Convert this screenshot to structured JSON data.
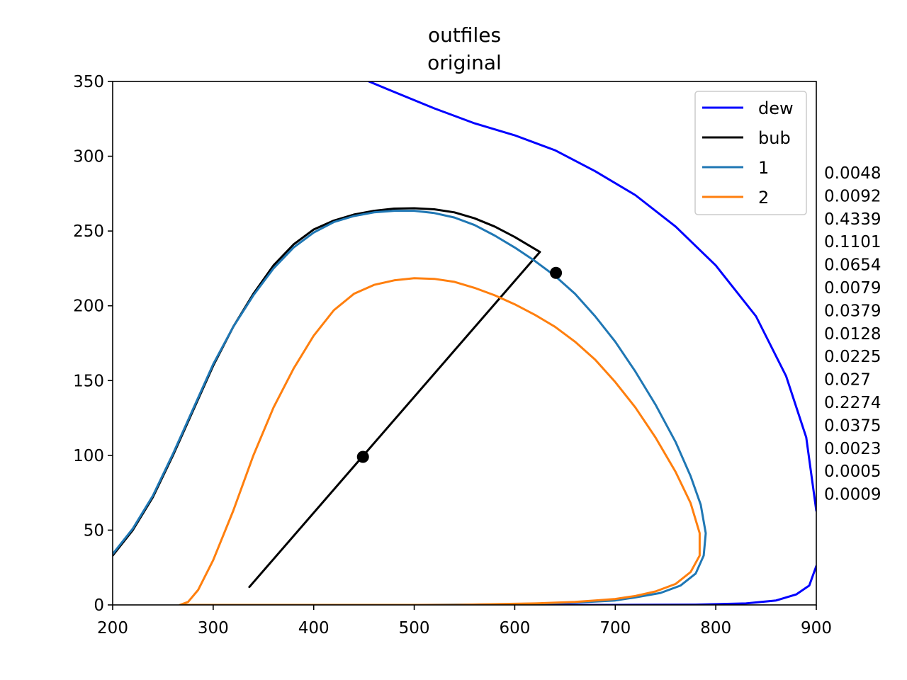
{
  "chart_data": {
    "type": "line",
    "title": "outfiles",
    "subtitle": "original",
    "xlabel": "",
    "ylabel": "",
    "xlim": [
      200,
      900
    ],
    "ylim": [
      0,
      350
    ],
    "xticks": [
      200,
      300,
      400,
      500,
      600,
      700,
      800,
      900
    ],
    "yticks": [
      0,
      50,
      100,
      150,
      200,
      250,
      300,
      350
    ],
    "grid": false,
    "legend_position": "top-right",
    "series": [
      {
        "name": "dew",
        "color": "#0000ff",
        "points": [
          [
            455,
            350
          ],
          [
            480,
            343
          ],
          [
            520,
            332
          ],
          [
            560,
            322
          ],
          [
            600,
            314
          ],
          [
            640,
            304
          ],
          [
            680,
            290
          ],
          [
            720,
            274
          ],
          [
            760,
            253
          ],
          [
            800,
            227
          ],
          [
            840,
            193
          ],
          [
            870,
            153
          ],
          [
            890,
            112
          ],
          [
            900,
            63
          ]
        ]
      },
      {
        "name": "dew",
        "legend": false,
        "color": "#0000ff",
        "points": [
          [
            310,
            0
          ],
          [
            500,
            0
          ],
          [
            700,
            0
          ],
          [
            780,
            0.2
          ],
          [
            830,
            1
          ],
          [
            860,
            3
          ],
          [
            880,
            7
          ],
          [
            893,
            13
          ],
          [
            900,
            26
          ]
        ]
      },
      {
        "name": "bub",
        "color": "#000000",
        "points": [
          [
            200,
            33
          ],
          [
            220,
            50
          ],
          [
            240,
            72
          ],
          [
            260,
            100
          ],
          [
            280,
            130
          ],
          [
            300,
            160
          ],
          [
            320,
            186
          ],
          [
            340,
            208
          ],
          [
            360,
            227
          ],
          [
            380,
            241
          ],
          [
            400,
            251
          ],
          [
            420,
            257
          ],
          [
            440,
            261
          ],
          [
            460,
            263.5
          ],
          [
            480,
            265
          ],
          [
            500,
            265.2
          ],
          [
            520,
            264.5
          ],
          [
            540,
            262.5
          ],
          [
            560,
            258.5
          ],
          [
            580,
            253
          ],
          [
            600,
            246
          ],
          [
            625,
            236
          ]
        ]
      },
      {
        "name": "tie-line",
        "legend": false,
        "color": "#000000",
        "points": [
          [
            625,
            236
          ],
          [
            336,
            12
          ]
        ]
      },
      {
        "name": "1",
        "color": "#1f77b4",
        "points": [
          [
            200,
            34
          ],
          [
            220,
            51
          ],
          [
            240,
            73
          ],
          [
            260,
            101
          ],
          [
            280,
            131
          ],
          [
            300,
            161
          ],
          [
            320,
            186
          ],
          [
            340,
            207
          ],
          [
            360,
            225
          ],
          [
            380,
            239
          ],
          [
            400,
            249
          ],
          [
            420,
            256
          ],
          [
            440,
            260
          ],
          [
            460,
            262.5
          ],
          [
            480,
            263.5
          ],
          [
            500,
            263.5
          ],
          [
            520,
            262
          ],
          [
            540,
            259
          ],
          [
            560,
            254
          ],
          [
            580,
            247
          ],
          [
            600,
            239
          ],
          [
            620,
            230
          ],
          [
            640,
            220
          ],
          [
            660,
            208
          ],
          [
            680,
            193
          ],
          [
            700,
            176
          ],
          [
            720,
            156
          ],
          [
            740,
            134
          ],
          [
            760,
            109
          ],
          [
            775,
            86
          ],
          [
            785,
            67
          ],
          [
            790,
            48
          ],
          [
            788,
            33
          ],
          [
            780,
            21
          ],
          [
            765,
            13
          ],
          [
            745,
            8
          ],
          [
            720,
            5
          ],
          [
            700,
            3
          ],
          [
            660,
            1.5
          ],
          [
            620,
            0.8
          ],
          [
            560,
            0.3
          ],
          [
            500,
            0
          ],
          [
            420,
            0
          ],
          [
            320,
            0
          ]
        ]
      },
      {
        "name": "2",
        "color": "#ff7f0e",
        "points": [
          [
            267,
            0
          ],
          [
            275,
            2
          ],
          [
            285,
            10
          ],
          [
            300,
            30
          ],
          [
            320,
            63
          ],
          [
            340,
            100
          ],
          [
            360,
            132
          ],
          [
            380,
            158
          ],
          [
            400,
            180
          ],
          [
            420,
            197
          ],
          [
            440,
            208
          ],
          [
            460,
            214
          ],
          [
            480,
            217
          ],
          [
            500,
            218.5
          ],
          [
            520,
            218
          ],
          [
            540,
            216
          ],
          [
            560,
            212
          ],
          [
            580,
            207
          ],
          [
            600,
            201
          ],
          [
            620,
            194
          ],
          [
            640,
            186
          ],
          [
            660,
            176
          ],
          [
            680,
            164
          ],
          [
            700,
            149
          ],
          [
            720,
            132
          ],
          [
            740,
            112
          ],
          [
            760,
            89
          ],
          [
            775,
            68
          ],
          [
            784,
            48
          ],
          [
            784,
            33
          ],
          [
            775,
            22
          ],
          [
            760,
            14
          ],
          [
            740,
            9
          ],
          [
            720,
            6
          ],
          [
            700,
            4
          ],
          [
            680,
            3
          ],
          [
            660,
            2
          ],
          [
            620,
            1
          ],
          [
            580,
            0.5
          ],
          [
            540,
            0
          ],
          [
            400,
            0
          ],
          [
            290,
            0
          ],
          [
            267,
            0
          ]
        ]
      }
    ],
    "markers": [
      {
        "x": 449,
        "y": 99,
        "color": "#000000"
      },
      {
        "x": 641,
        "y": 222,
        "color": "#000000"
      }
    ],
    "legend_entries": [
      {
        "label": "dew",
        "color": "#0000ff"
      },
      {
        "label": "bub",
        "color": "#000000"
      },
      {
        "label": "1",
        "color": "#1f77b4"
      },
      {
        "label": "2",
        "color": "#ff7f0e"
      }
    ],
    "side_annotations": [
      "0.0048",
      "0.0092",
      "0.4339",
      "0.1101",
      "0.0654",
      "0.0079",
      "0.0379",
      "0.0128",
      "0.0225",
      "0.027",
      "0.2274",
      "0.0375",
      "0.0023",
      "0.0005",
      "0.0009"
    ]
  }
}
